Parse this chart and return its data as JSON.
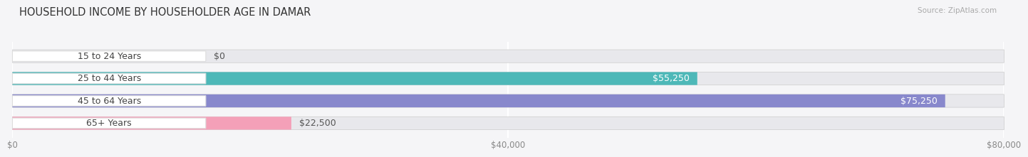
{
  "title": "HOUSEHOLD INCOME BY HOUSEHOLDER AGE IN DAMAR",
  "source": "Source: ZipAtlas.com",
  "categories": [
    "15 to 24 Years",
    "25 to 44 Years",
    "45 to 64 Years",
    "65+ Years"
  ],
  "values": [
    0,
    55250,
    75250,
    22500
  ],
  "bar_colors": [
    "#c9b0d4",
    "#4db8b8",
    "#8888cc",
    "#f4a0b8"
  ],
  "bar_labels": [
    "$0",
    "$55,250",
    "$75,250",
    "$22,500"
  ],
  "xmax": 80000,
  "xticks": [
    0,
    40000,
    80000
  ],
  "xticklabels": [
    "$0",
    "$40,000",
    "$80,000"
  ],
  "bar_bg_color": "#e8e8ec",
  "fig_bg": "#f5f5f7",
  "title_fontsize": 10.5,
  "label_fontsize": 9,
  "bar_height": 0.58,
  "pill_color": "#ffffff",
  "pill_text_color": "#444444",
  "value_label_inside_color": "#ffffff",
  "value_label_outside_color": "#555555"
}
